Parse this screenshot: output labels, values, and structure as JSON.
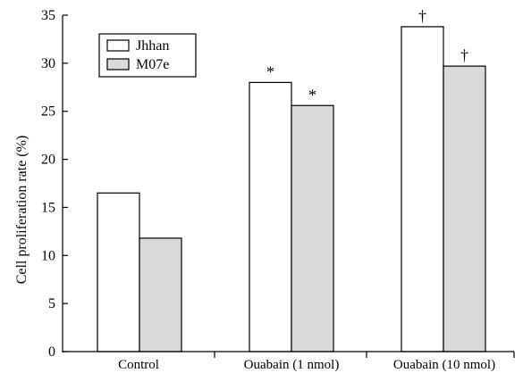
{
  "chart_data": {
    "type": "bar",
    "categories": [
      "Control",
      "Ouabain (1 nmol)",
      "Ouabain (10 nmol)"
    ],
    "series": [
      {
        "name": "Jhhan",
        "values": [
          16.5,
          28.0,
          33.8
        ],
        "color": "#ffffff"
      },
      {
        "name": "M07e",
        "values": [
          11.8,
          25.6,
          29.7
        ],
        "color": "#d9d9d9"
      }
    ],
    "annotations": [
      [
        "",
        "*",
        "†"
      ],
      [
        "",
        "*",
        "†"
      ]
    ],
    "title": "",
    "xlabel": "",
    "ylabel": "Cell proliferation rate (%)",
    "ylim": [
      0,
      35
    ],
    "yticks": [
      0,
      5,
      10,
      15,
      20,
      25,
      30,
      35
    ],
    "grid": false,
    "legend_position": "top-left"
  }
}
